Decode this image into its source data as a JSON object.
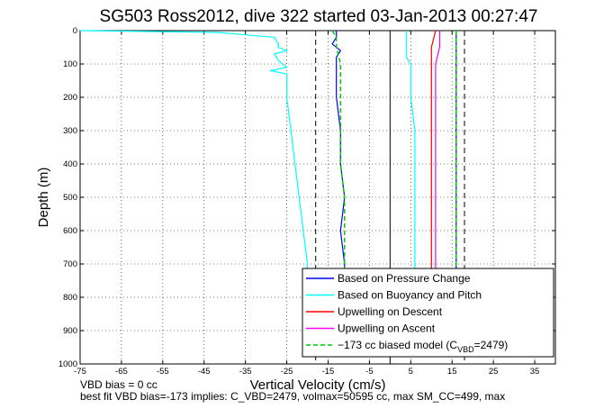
{
  "chart_data": {
    "type": "line",
    "title": "SG503 Ross2012, dive 322 started 03-Jan-2013 00:27:47",
    "xlabel": "Vertical Velocity (cm/s)",
    "ylabel": "Depth (m)",
    "xlim": [
      -75,
      40
    ],
    "ylim": [
      1000,
      0
    ],
    "y_reversed": true,
    "grid": true,
    "x_ticks": [
      "-75",
      "-65",
      "-55",
      "-45",
      "-35",
      "-25",
      "-15",
      "-5",
      "5",
      "15",
      "25",
      "35"
    ],
    "x_tick_values": [
      -75,
      -65,
      -55,
      -45,
      -35,
      -25,
      -15,
      -5,
      5,
      15,
      25,
      35
    ],
    "y_ticks": [
      "0",
      "100",
      "200",
      "300",
      "400",
      "500",
      "600",
      "700",
      "800",
      "900",
      "1000"
    ],
    "y_tick_values": [
      0,
      100,
      200,
      300,
      400,
      500,
      600,
      700,
      800,
      900,
      1000
    ],
    "legend_position": "bottom-right",
    "series": [
      {
        "name": "Based on Pressure Change",
        "color": "#0000ff",
        "style": "solid",
        "branches": [
          {
            "depth": [
              0,
              20,
              40,
              60,
              80,
              100,
              120,
              130,
              200,
              300,
              400,
              500,
              600,
              700,
              720
            ],
            "velocity": [
              -13,
              -13,
              -14,
              -12,
              -13,
              -13,
              -13,
              -13,
              -13,
              -12,
              -12,
              -11,
              -12,
              -11,
              -11
            ]
          },
          {
            "depth": [
              0,
              20,
              40,
              60,
              80,
              100,
              120,
              200,
              300,
              400,
              500,
              600,
              700,
              720
            ],
            "velocity": [
              16,
              16,
              16,
              16,
              16,
              16,
              16,
              16,
              16,
              16,
              16,
              16,
              16,
              16
            ]
          }
        ]
      },
      {
        "name": "Based on Buoyancy and Pitch",
        "color": "#00ffff",
        "style": "solid",
        "branches": [
          {
            "depth": [
              0,
              5,
              20,
              40,
              50,
              60,
              70,
              90,
              110,
              120,
              130,
              140,
              200,
              300,
              400,
              500,
              600,
              700,
              720
            ],
            "velocity": [
              -75,
              -42,
              -28,
              -27,
              -27,
              -25,
              -28,
              -27,
              -25,
              -29,
              -25,
              -25,
              -25,
              -24,
              -23,
              -22,
              -21,
              -20,
              -20
            ]
          },
          {
            "depth": [
              0,
              20,
              40,
              60,
              80,
              100,
              120,
              200,
              300,
              400,
              500,
              600,
              700,
              720
            ],
            "velocity": [
              4,
              4,
              4,
              4,
              4,
              5,
              5,
              5,
              6,
              6,
              6,
              6,
              6,
              6
            ]
          }
        ]
      },
      {
        "name": "Upwelling on Descent",
        "color": "#ff0000",
        "style": "solid",
        "branches": [
          {
            "depth": [
              0,
              50,
              100,
              200,
              300,
              400,
              500,
              600,
              700,
              720
            ],
            "velocity": [
              11,
              10,
              10,
              10,
              10,
              10,
              10,
              10,
              10,
              10
            ]
          }
        ]
      },
      {
        "name": "Upwelling on Ascent",
        "color": "#ff00ff",
        "style": "solid",
        "branches": [
          {
            "depth": [
              0,
              50,
              100,
              200,
              300,
              400,
              500,
              600,
              700,
              720
            ],
            "velocity": [
              12,
              12,
              11,
              11,
              11,
              11,
              11,
              11,
              11,
              11
            ]
          }
        ]
      },
      {
        "name": "-173 cc biased model",
        "legend_label": "−173 cc biased model (C",
        "legend_sub": "VBD",
        "legend_tail": "=2479)",
        "color": "#00cc00",
        "style": "dashed",
        "branches": [
          {
            "depth": [
              0,
              20,
              50,
              100,
              200,
              300,
              400,
              500,
              600,
              700,
              720
            ],
            "velocity": [
              -14,
              -13,
              -13,
              -12,
              -12,
              -12,
              -12,
              -11,
              -11,
              -11,
              -11
            ]
          },
          {
            "depth": [
              0,
              20,
              50,
              100,
              200,
              300,
              400,
              500,
              600,
              700,
              720
            ],
            "velocity": [
              16,
              16,
              16,
              16,
              16,
              16,
              16,
              16,
              16,
              16,
              16
            ]
          }
        ]
      }
    ],
    "reference_lines": [
      {
        "x": -18,
        "style": "dashed",
        "color": "#000000"
      },
      {
        "x": 0,
        "style": "solid",
        "color": "#000000"
      },
      {
        "x": 18,
        "style": "dashed",
        "color": "#000000"
      }
    ]
  },
  "footer": {
    "line1": "VBD bias = 0 cc",
    "line2": "best fit VBD bias=-173 implies: C_VBD=2479, volmax=50595 cc, max SM_CC=499, max"
  }
}
